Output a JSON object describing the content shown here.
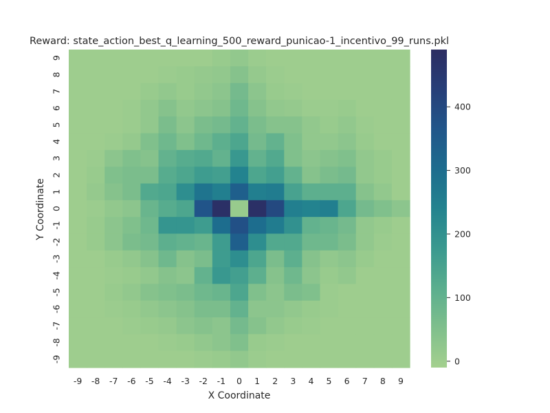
{
  "chart_data": {
    "type": "heatmap",
    "title": "Reward: state_action_best_q_learning_500_reward_punicao-1_incentivo_99_runs.pkl",
    "xlabel": "X Coordinate",
    "ylabel": "Y Coordinate",
    "x_ticks": [
      "-9",
      "-8",
      "-7",
      "-6",
      "-5",
      "-4",
      "-3",
      "-2",
      "-1",
      "0",
      "1",
      "2",
      "3",
      "4",
      "5",
      "6",
      "7",
      "8",
      "9"
    ],
    "y_ticks": [
      "9",
      "8",
      "7",
      "6",
      "5",
      "4",
      "3",
      "2",
      "1",
      "0",
      "-1",
      "-2",
      "-3",
      "-4",
      "-5",
      "-6",
      "-7",
      "-8",
      "-9"
    ],
    "colorbar": {
      "min": -10,
      "max": 490,
      "ticks": [
        0,
        100,
        200,
        300,
        400
      ],
      "tick_labels": [
        "0",
        "100",
        "200",
        "300",
        "400"
      ],
      "colormap": "crest",
      "colors": [
        "#a4d08e",
        "#7fbf8c",
        "#5aae8e",
        "#3a998f",
        "#23838f",
        "#1d6c8e",
        "#21568a",
        "#273e78",
        "#2c2d62"
      ]
    },
    "grid": false,
    "legend": "none",
    "values": [
      [
        0,
        0,
        0,
        0,
        0,
        0,
        0,
        0,
        10,
        20,
        5,
        0,
        0,
        0,
        0,
        0,
        0,
        0,
        0
      ],
      [
        0,
        0,
        0,
        0,
        0,
        5,
        10,
        15,
        20,
        40,
        15,
        5,
        0,
        0,
        0,
        0,
        0,
        0,
        0
      ],
      [
        0,
        0,
        0,
        0,
        10,
        20,
        10,
        20,
        30,
        70,
        30,
        10,
        5,
        0,
        0,
        0,
        0,
        0,
        0
      ],
      [
        0,
        0,
        0,
        5,
        20,
        40,
        20,
        30,
        40,
        80,
        40,
        20,
        15,
        5,
        5,
        10,
        0,
        0,
        0
      ],
      [
        0,
        0,
        0,
        5,
        20,
        60,
        30,
        60,
        70,
        100,
        60,
        40,
        40,
        20,
        10,
        20,
        5,
        0,
        0
      ],
      [
        0,
        0,
        5,
        15,
        50,
        80,
        50,
        80,
        110,
        140,
        70,
        100,
        50,
        20,
        20,
        30,
        10,
        0,
        0
      ],
      [
        0,
        5,
        30,
        50,
        40,
        100,
        120,
        130,
        100,
        180,
        100,
        130,
        50,
        30,
        40,
        50,
        20,
        10,
        0
      ],
      [
        0,
        10,
        50,
        60,
        60,
        120,
        140,
        170,
        160,
        240,
        140,
        160,
        100,
        40,
        60,
        70,
        20,
        10,
        0
      ],
      [
        0,
        15,
        40,
        60,
        130,
        140,
        210,
        280,
        250,
        340,
        250,
        260,
        150,
        110,
        110,
        110,
        40,
        20,
        0
      ],
      [
        0,
        5,
        20,
        30,
        90,
        120,
        140,
        370,
        480,
        10,
        480,
        400,
        250,
        240,
        250,
        140,
        70,
        50,
        30
      ],
      [
        0,
        10,
        30,
        50,
        80,
        190,
        190,
        170,
        300,
        380,
        300,
        260,
        200,
        100,
        90,
        70,
        20,
        10,
        0
      ],
      [
        0,
        10,
        30,
        60,
        70,
        110,
        100,
        90,
        170,
        340,
        210,
        130,
        130,
        80,
        80,
        60,
        20,
        5,
        0
      ],
      [
        0,
        0,
        10,
        20,
        40,
        80,
        40,
        60,
        170,
        210,
        140,
        60,
        110,
        40,
        20,
        30,
        10,
        0,
        0
      ],
      [
        0,
        0,
        5,
        10,
        20,
        40,
        30,
        100,
        180,
        160,
        110,
        40,
        80,
        30,
        10,
        20,
        0,
        0,
        0
      ],
      [
        0,
        0,
        10,
        20,
        40,
        50,
        60,
        80,
        90,
        140,
        50,
        30,
        60,
        50,
        5,
        0,
        0,
        0,
        0
      ],
      [
        0,
        0,
        5,
        10,
        20,
        30,
        40,
        60,
        60,
        100,
        30,
        30,
        20,
        10,
        5,
        0,
        0,
        0,
        0
      ],
      [
        0,
        0,
        0,
        5,
        10,
        15,
        30,
        40,
        30,
        70,
        40,
        20,
        10,
        5,
        0,
        0,
        0,
        0,
        0
      ],
      [
        0,
        0,
        0,
        0,
        0,
        5,
        10,
        20,
        30,
        50,
        10,
        5,
        0,
        0,
        0,
        0,
        0,
        0,
        0
      ],
      [
        0,
        0,
        0,
        0,
        0,
        0,
        0,
        5,
        10,
        20,
        5,
        0,
        0,
        0,
        0,
        0,
        0,
        0,
        0
      ]
    ]
  }
}
